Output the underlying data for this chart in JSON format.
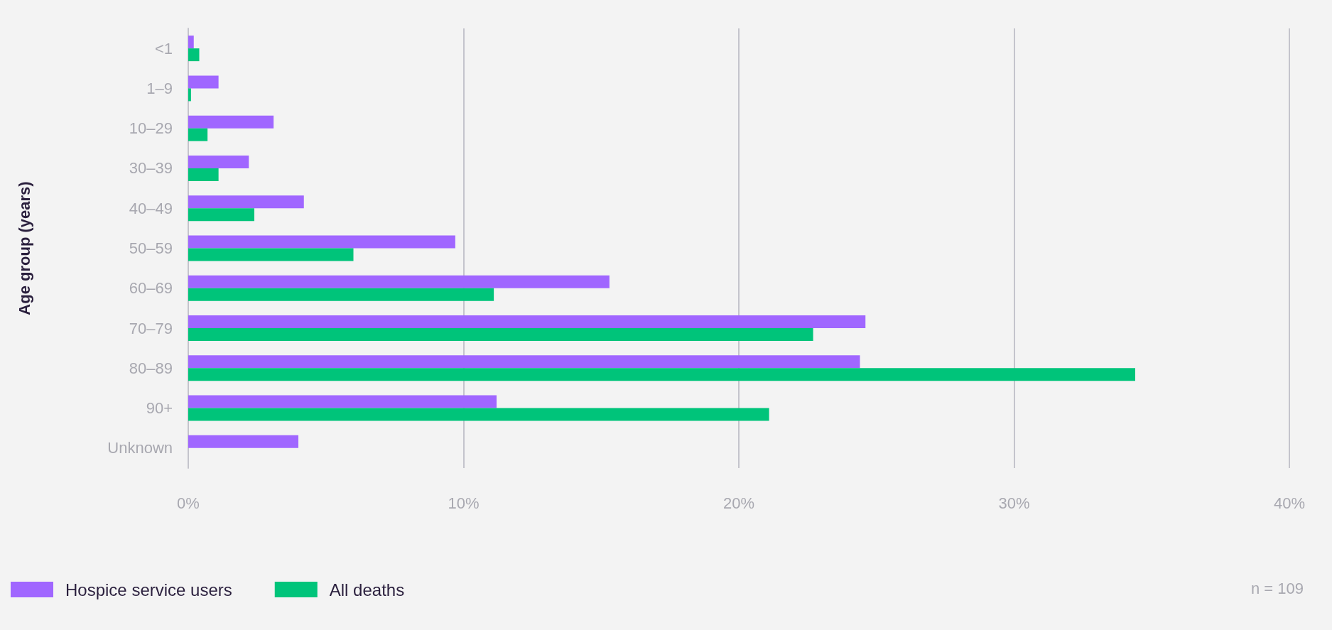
{
  "chart_data": {
    "type": "bar",
    "orientation": "horizontal",
    "ylabel": "Age group (years)",
    "categories": [
      "<1",
      "1–9",
      "10–29",
      "30–39",
      "40–49",
      "50–59",
      "60–69",
      "70–79",
      "80–89",
      "90+",
      "Unknown"
    ],
    "series": [
      {
        "name": "Hospice service users",
        "color": "#a066ff",
        "values": [
          0.2,
          1.1,
          3.1,
          2.2,
          4.2,
          9.7,
          15.3,
          24.6,
          24.4,
          11.2,
          4.0
        ]
      },
      {
        "name": "All deaths",
        "color": "#00c47a",
        "values": [
          0.4,
          0.1,
          0.7,
          1.1,
          2.4,
          6.0,
          11.1,
          22.7,
          34.4,
          21.1,
          null
        ]
      }
    ],
    "xlim": [
      0,
      40
    ],
    "xticks": [
      {
        "value": 0,
        "label": "0%"
      },
      {
        "value": 10,
        "label": "10%"
      },
      {
        "value": 20,
        "label": "20%"
      },
      {
        "value": 30,
        "label": "30%"
      },
      {
        "value": 40,
        "label": "40%"
      }
    ],
    "grid": "x",
    "legend": "bottom left",
    "annotations": [
      "n = 109"
    ]
  }
}
